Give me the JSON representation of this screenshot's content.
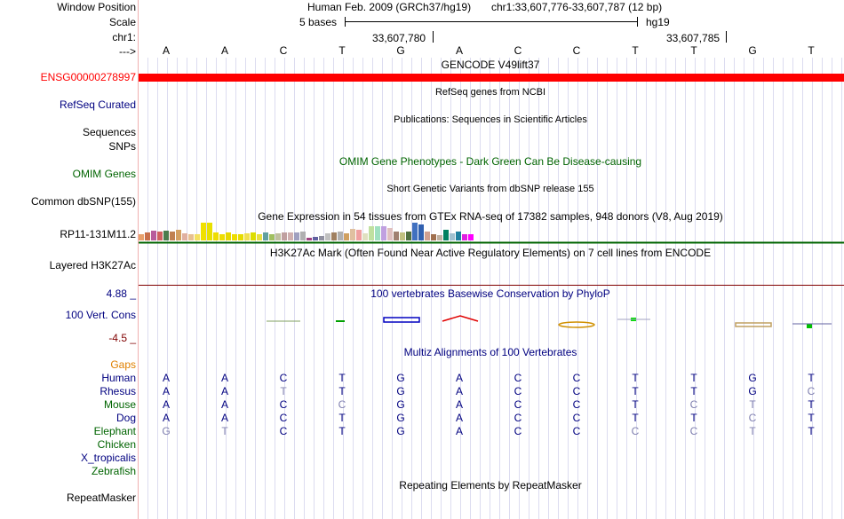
{
  "position_header": {
    "window_position_label": "Window Position",
    "scale_label": "Scale",
    "chr_label": "chr1:",
    "arrow_label": "--->",
    "assembly": "Human Feb. 2009 (GRCh37/hg19)",
    "region": "chr1:33,607,776-33,607,787 (12 bp)",
    "scale_text": "5 bases",
    "db": "hg19",
    "coord_left": "33,607,780",
    "coord_right": "33,607,785",
    "bases": [
      "A",
      "A",
      "C",
      "T",
      "G",
      "A",
      "C",
      "C",
      "T",
      "T",
      "G",
      "T"
    ]
  },
  "tracks": {
    "gencode": {
      "title": "GENCODE V49lift37",
      "gene_label": "ENSG00000278997",
      "color": "#ff0000"
    },
    "refseq": {
      "title": "RefSeq genes from NCBI",
      "label": "RefSeq Curated"
    },
    "publications": {
      "title": "Publications: Sequences in Scientific Articles",
      "label_seq": "Sequences",
      "label_snps": "SNPs"
    },
    "omim": {
      "title": "OMIM Gene Phenotypes - Dark Green Can Be Disease-causing",
      "label": "OMIM Genes",
      "color": "#006400"
    },
    "dbsnp": {
      "title": "Short Genetic Variants from dbSNP release 155",
      "label": "Common dbSNP(155)"
    },
    "gtex": {
      "title": "Gene Expression in 54 tissues from GTEx RNA-seq of 17382 samples, 948 donors (V8, Aug 2019)",
      "label": "RP11-131M11.2",
      "bars": [
        {
          "c": "#e8a06c",
          "h": 0.35
        },
        {
          "c": "#c86f4a",
          "h": 0.45
        },
        {
          "c": "#b85c9c",
          "h": 0.55
        },
        {
          "c": "#d06060",
          "h": 0.5
        },
        {
          "c": "#4c7c4c",
          "h": 0.55
        },
        {
          "c": "#c08050",
          "h": 0.5
        },
        {
          "c": "#d4a060",
          "h": 0.6
        },
        {
          "c": "#e0b0a0",
          "h": 0.4
        },
        {
          "c": "#e8c090",
          "h": 0.35
        },
        {
          "c": "#f4e060",
          "h": 0.35
        },
        {
          "c": "#f0e000",
          "h": 1.0
        },
        {
          "c": "#e8e000",
          "h": 1.0
        },
        {
          "c": "#eedd00",
          "h": 0.45
        },
        {
          "c": "#eedd00",
          "h": 0.35
        },
        {
          "c": "#e6d800",
          "h": 0.45
        },
        {
          "c": "#eedd00",
          "h": 0.35
        },
        {
          "c": "#e6dc00",
          "h": 0.35
        },
        {
          "c": "#f0e050",
          "h": 0.4
        },
        {
          "c": "#dddd00",
          "h": 0.45
        },
        {
          "c": "#e8e040",
          "h": 0.35
        },
        {
          "c": "#60a0a0",
          "h": 0.45
        },
        {
          "c": "#a0c060",
          "h": 0.35
        },
        {
          "c": "#c0c0a0",
          "h": 0.4
        },
        {
          "c": "#c0a0a0",
          "h": 0.45
        },
        {
          "c": "#d0b0b0",
          "h": 0.45
        },
        {
          "c": "#a0a0c0",
          "h": 0.45
        },
        {
          "c": "#b0b0b0",
          "h": 0.5
        },
        {
          "c": "#a04080",
          "h": 0.15
        },
        {
          "c": "#6060a0",
          "h": 0.2
        },
        {
          "c": "#9090a0",
          "h": 0.25
        },
        {
          "c": "#c0c0c0",
          "h": 0.4
        },
        {
          "c": "#a08060",
          "h": 0.45
        },
        {
          "c": "#b0b0b0",
          "h": 0.5
        },
        {
          "c": "#d0a060",
          "h": 0.4
        },
        {
          "c": "#e0c0a0",
          "h": 0.65
        },
        {
          "c": "#f0a0a0",
          "h": 0.6
        },
        {
          "c": "#e0e0c0",
          "h": 0.4
        },
        {
          "c": "#c0e0a0",
          "h": 0.8
        },
        {
          "c": "#a0e0c0",
          "h": 0.8
        },
        {
          "c": "#c0a0e0",
          "h": 0.8
        },
        {
          "c": "#e0c0c0",
          "h": 0.7
        },
        {
          "c": "#a08070",
          "h": 0.5
        },
        {
          "c": "#c0c080",
          "h": 0.45
        },
        {
          "c": "#507040",
          "h": 0.5
        },
        {
          "c": "#4070c0",
          "h": 1.0
        },
        {
          "c": "#3060b0",
          "h": 0.9
        },
        {
          "c": "#d0a090",
          "h": 0.5
        },
        {
          "c": "#a07050",
          "h": 0.35
        },
        {
          "c": "#c0b0a0",
          "h": 0.3
        },
        {
          "c": "#008060",
          "h": 0.6
        },
        {
          "c": "#a0c0d0",
          "h": 0.4
        },
        {
          "c": "#2080a0",
          "h": 0.5
        },
        {
          "c": "#e020e0",
          "h": 0.35
        },
        {
          "c": "#ff00ff",
          "h": 0.35
        }
      ]
    },
    "h3k27ac": {
      "title": "H3K27Ac Mark (Often Found Near Active Regulatory Elements) on 7 cell lines from ENCODE",
      "label": "Layered H3K27Ac"
    },
    "conservation": {
      "title": "100 vertebrates Basewise Conservation by PhyloP",
      "label": "100 Vert. Cons",
      "max": "4.88 _",
      "min": "-4.5 _",
      "color": "#000080"
    },
    "multiz": {
      "title": "Multiz Alignments of 100 Vertebrates",
      "gaps_label": "Gaps",
      "species": [
        {
          "name": "Human",
          "color": "#000080",
          "bases": [
            "A",
            "A",
            "C",
            "T",
            "G",
            "A",
            "C",
            "C",
            "T",
            "T",
            "G",
            "T"
          ],
          "faded": [
            false,
            false,
            false,
            false,
            false,
            false,
            false,
            false,
            false,
            false,
            false,
            false
          ]
        },
        {
          "name": "Rhesus",
          "color": "#000080",
          "bases": [
            "A",
            "A",
            "T",
            "T",
            "G",
            "A",
            "C",
            "C",
            "T",
            "T",
            "G",
            "C"
          ],
          "faded": [
            false,
            false,
            true,
            false,
            false,
            false,
            false,
            false,
            false,
            false,
            false,
            true
          ]
        },
        {
          "name": "Mouse",
          "color": "#006400",
          "bases": [
            "A",
            "A",
            "C",
            "C",
            "G",
            "A",
            "C",
            "C",
            "T",
            "C",
            "T",
            "T"
          ],
          "faded": [
            false,
            false,
            false,
            true,
            false,
            false,
            false,
            false,
            false,
            true,
            true,
            false
          ]
        },
        {
          "name": "Dog",
          "color": "#000080",
          "bases": [
            "A",
            "A",
            "C",
            "T",
            "G",
            "A",
            "C",
            "C",
            "T",
            "T",
            "C",
            "T"
          ],
          "faded": [
            false,
            false,
            false,
            false,
            false,
            false,
            false,
            false,
            false,
            false,
            true,
            false
          ]
        },
        {
          "name": "Elephant",
          "color": "#006400",
          "bases": [
            "G",
            "T",
            "C",
            "T",
            "G",
            "A",
            "C",
            "C",
            "C",
            "C",
            "T",
            "T"
          ],
          "faded": [
            true,
            true,
            false,
            false,
            false,
            false,
            false,
            false,
            true,
            true,
            true,
            false
          ]
        },
        {
          "name": "Chicken",
          "color": "#006400",
          "bases": [],
          "faded": []
        },
        {
          "name": "X_tropicalis",
          "color": "#000080",
          "bases": [],
          "faded": []
        },
        {
          "name": "Zebrafish",
          "color": "#006400",
          "bases": [],
          "faded": []
        }
      ]
    },
    "repeatmasker": {
      "title": "Repeating Elements by RepeatMasker",
      "label": "RepeatMasker"
    }
  },
  "colors": {
    "label_blue": "#000080",
    "label_green": "#006400",
    "gaps_orange": "#e08000",
    "faded_base": "#8080b0",
    "red_label": "#ff0000",
    "cons_max": "#000080",
    "cons_min": "#800000",
    "grid": "#dcdcf0"
  }
}
